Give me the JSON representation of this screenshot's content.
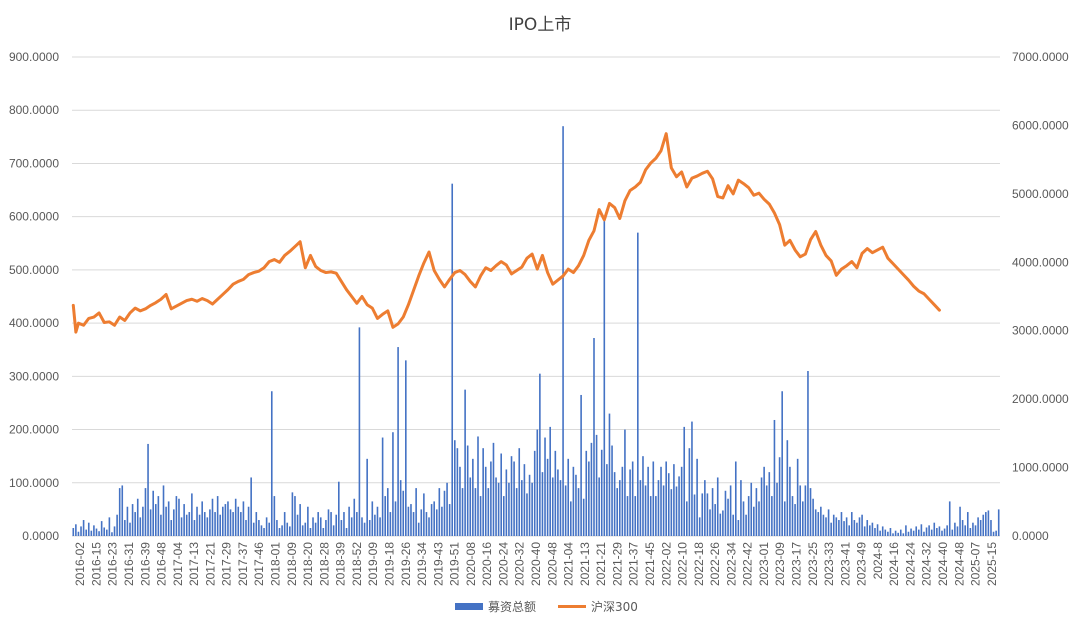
{
  "chart_data": {
    "type": "bar+line",
    "title": "IPO上市",
    "grid": true,
    "legend_position": "bottom",
    "colors": {
      "bars": "#4472C4",
      "line": "#ED7D31",
      "grid": "#D9D9D9",
      "text": "#595959"
    },
    "x_tick_labels": [
      "2016-02",
      "2016-15",
      "2016-23",
      "2016-31",
      "2016-39",
      "2016-48",
      "2017-04",
      "2017-13",
      "2017-21",
      "2017-29",
      "2017-37",
      "2017-46",
      "2018-01",
      "2018-09",
      "2018-20",
      "2018-28",
      "2018-39",
      "2018-52",
      "2019-09",
      "2019-18",
      "2019-26",
      "2019-34",
      "2019-43",
      "2019-51",
      "2020-08",
      "2020-16",
      "2020-24",
      "2020-32",
      "2020-40",
      "2020-48",
      "2021-04",
      "2021-13",
      "2021-21",
      "2021-29",
      "2021-37",
      "2021-45",
      "2022-02",
      "2022-10",
      "2022-18",
      "2022-26",
      "2022-34",
      "2022-42",
      "2023-01",
      "2023-09",
      "2023-17",
      "2023-25",
      "2023-33",
      "2023-41",
      "2023-49",
      "2024-8",
      "2024-16",
      "2024-24",
      "2024-32",
      "2024-40",
      "2024-48",
      "2025-07",
      "2025-15"
    ],
    "y_left": {
      "ylim": [
        0,
        900
      ],
      "ticks": [
        "0.0000",
        "100.0000",
        "200.0000",
        "300.0000",
        "400.0000",
        "500.0000",
        "600.0000",
        "700.0000",
        "800.0000",
        "900.0000"
      ]
    },
    "y_right": {
      "ylim": [
        0,
        7000
      ],
      "ticks": [
        "0.0000",
        "1000.0000",
        "2000.0000",
        "3000.0000",
        "4000.0000",
        "5000.0000",
        "6000.0000",
        "7000.0000"
      ]
    },
    "series": [
      {
        "name": "募资总额",
        "type": "bar",
        "axis": "left",
        "values": [
          15,
          22,
          8,
          18,
          30,
          12,
          25,
          10,
          20,
          14,
          9,
          28,
          16,
          12,
          35,
          7,
          18,
          40,
          90,
          95,
          30,
          55,
          25,
          60,
          45,
          70,
          35,
          55,
          90,
          173,
          50,
          85,
          60,
          75,
          40,
          95,
          55,
          65,
          30,
          50,
          75,
          70,
          35,
          60,
          40,
          45,
          80,
          30,
          55,
          40,
          65,
          45,
          35,
          50,
          70,
          45,
          75,
          40,
          55,
          60,
          65,
          50,
          45,
          70,
          55,
          45,
          65,
          30,
          55,
          110,
          25,
          45,
          30,
          20,
          15,
          35,
          25,
          272,
          75,
          30,
          15,
          20,
          45,
          25,
          18,
          82,
          75,
          40,
          60,
          20,
          25,
          55,
          15,
          35,
          25,
          45,
          35,
          15,
          30,
          50,
          45,
          20,
          40,
          102,
          30,
          45,
          15,
          55,
          35,
          70,
          45,
          392,
          35,
          25,
          145,
          30,
          65,
          40,
          55,
          35,
          185,
          75,
          90,
          45,
          195,
          65,
          355,
          105,
          85,
          330,
          55,
          60,
          45,
          90,
          25,
          50,
          80,
          45,
          35,
          60,
          65,
          50,
          90,
          55,
          85,
          100,
          60,
          662,
          180,
          165,
          130,
          90,
          275,
          170,
          110,
          145,
          90,
          187,
          75,
          165,
          130,
          90,
          140,
          175,
          110,
          100,
          155,
          75,
          125,
          100,
          150,
          140,
          90,
          165,
          105,
          135,
          80,
          115,
          100,
          160,
          200,
          305,
          120,
          185,
          145,
          205,
          110,
          160,
          125,
          105,
          770,
          95,
          145,
          65,
          130,
          115,
          90,
          265,
          70,
          160,
          140,
          175,
          372,
          190,
          110,
          162,
          600,
          135,
          230,
          170,
          120,
          90,
          105,
          130,
          200,
          75,
          125,
          140,
          75,
          570,
          105,
          150,
          95,
          130,
          75,
          140,
          75,
          105,
          130,
          95,
          140,
          118,
          88,
          135,
          93,
          112,
          130,
          205,
          65,
          165,
          215,
          78,
          145,
          35,
          80,
          105,
          80,
          50,
          90,
          60,
          110,
          42,
          48,
          85,
          70,
          95,
          40,
          140,
          30,
          105,
          65,
          40,
          75,
          100,
          55,
          90,
          65,
          110,
          130,
          95,
          120,
          75,
          218,
          100,
          148,
          272,
          65,
          180,
          130,
          75,
          60,
          145,
          95,
          65,
          95,
          310,
          90,
          70,
          50,
          45,
          55,
          40,
          35,
          50,
          25,
          40,
          35,
          30,
          45,
          28,
          35,
          20,
          45,
          30,
          25,
          35,
          40,
          18,
          30,
          20,
          25,
          15,
          22,
          10,
          18,
          12,
          8,
          15,
          5,
          10,
          6,
          12,
          5,
          20,
          8,
          14,
          10,
          18,
          12,
          22,
          8,
          16,
          20,
          12,
          25,
          15,
          18,
          10,
          14,
          20,
          65,
          12,
          25,
          18,
          55,
          30,
          20,
          45,
          15,
          25,
          20,
          35,
          30,
          40,
          45,
          48,
          30,
          8,
          10,
          50
        ]
      },
      {
        "name": "沪深300",
        "type": "line",
        "axis": "right",
        "points": [
          [
            0,
            3370
          ],
          [
            1,
            2980
          ],
          [
            2,
            3110
          ],
          [
            4,
            3080
          ],
          [
            6,
            3180
          ],
          [
            8,
            3200
          ],
          [
            10,
            3260
          ],
          [
            12,
            3120
          ],
          [
            14,
            3130
          ],
          [
            16,
            3080
          ],
          [
            18,
            3200
          ],
          [
            20,
            3150
          ],
          [
            22,
            3260
          ],
          [
            24,
            3330
          ],
          [
            26,
            3290
          ],
          [
            28,
            3320
          ],
          [
            30,
            3370
          ],
          [
            32,
            3410
          ],
          [
            34,
            3460
          ],
          [
            36,
            3530
          ],
          [
            38,
            3320
          ],
          [
            40,
            3360
          ],
          [
            42,
            3400
          ],
          [
            44,
            3440
          ],
          [
            46,
            3460
          ],
          [
            48,
            3430
          ],
          [
            50,
            3470
          ],
          [
            52,
            3440
          ],
          [
            54,
            3390
          ],
          [
            56,
            3460
          ],
          [
            58,
            3530
          ],
          [
            60,
            3600
          ],
          [
            62,
            3680
          ],
          [
            64,
            3720
          ],
          [
            66,
            3750
          ],
          [
            68,
            3820
          ],
          [
            70,
            3850
          ],
          [
            72,
            3870
          ],
          [
            74,
            3920
          ],
          [
            76,
            4010
          ],
          [
            78,
            4040
          ],
          [
            80,
            4000
          ],
          [
            82,
            4100
          ],
          [
            84,
            4160
          ],
          [
            86,
            4230
          ],
          [
            88,
            4300
          ],
          [
            90,
            3920
          ],
          [
            92,
            4100
          ],
          [
            94,
            3940
          ],
          [
            96,
            3880
          ],
          [
            98,
            3850
          ],
          [
            100,
            3860
          ],
          [
            102,
            3840
          ],
          [
            104,
            3720
          ],
          [
            106,
            3600
          ],
          [
            108,
            3500
          ],
          [
            110,
            3400
          ],
          [
            112,
            3500
          ],
          [
            114,
            3380
          ],
          [
            116,
            3330
          ],
          [
            118,
            3180
          ],
          [
            120,
            3240
          ],
          [
            122,
            3290
          ],
          [
            124,
            3050
          ],
          [
            126,
            3100
          ],
          [
            128,
            3200
          ],
          [
            130,
            3380
          ],
          [
            132,
            3590
          ],
          [
            134,
            3800
          ],
          [
            136,
            3990
          ],
          [
            138,
            4150
          ],
          [
            140,
            3880
          ],
          [
            142,
            3750
          ],
          [
            144,
            3640
          ],
          [
            146,
            3750
          ],
          [
            148,
            3850
          ],
          [
            150,
            3880
          ],
          [
            152,
            3820
          ],
          [
            154,
            3720
          ],
          [
            156,
            3640
          ],
          [
            158,
            3800
          ],
          [
            160,
            3920
          ],
          [
            162,
            3880
          ],
          [
            164,
            3950
          ],
          [
            166,
            4010
          ],
          [
            168,
            3960
          ],
          [
            170,
            3830
          ],
          [
            172,
            3880
          ],
          [
            174,
            3930
          ],
          [
            176,
            4060
          ],
          [
            178,
            4120
          ],
          [
            180,
            3900
          ],
          [
            182,
            4100
          ],
          [
            184,
            3850
          ],
          [
            186,
            3680
          ],
          [
            188,
            3740
          ],
          [
            190,
            3800
          ],
          [
            192,
            3900
          ],
          [
            194,
            3850
          ],
          [
            196,
            3950
          ],
          [
            198,
            4100
          ],
          [
            200,
            4320
          ],
          [
            202,
            4460
          ],
          [
            204,
            4770
          ],
          [
            206,
            4620
          ],
          [
            208,
            4860
          ],
          [
            210,
            4800
          ],
          [
            212,
            4640
          ],
          [
            214,
            4900
          ],
          [
            216,
            5050
          ],
          [
            218,
            5100
          ],
          [
            220,
            5170
          ],
          [
            222,
            5350
          ],
          [
            224,
            5450
          ],
          [
            226,
            5520
          ],
          [
            228,
            5630
          ],
          [
            230,
            5880
          ],
          [
            232,
            5380
          ],
          [
            234,
            5250
          ],
          [
            236,
            5320
          ],
          [
            238,
            5100
          ],
          [
            240,
            5230
          ],
          [
            242,
            5260
          ],
          [
            244,
            5300
          ],
          [
            246,
            5330
          ],
          [
            248,
            5220
          ],
          [
            250,
            4960
          ],
          [
            252,
            4940
          ],
          [
            254,
            5120
          ],
          [
            256,
            5000
          ],
          [
            258,
            5200
          ],
          [
            260,
            5150
          ],
          [
            262,
            5090
          ],
          [
            264,
            4980
          ],
          [
            266,
            5010
          ],
          [
            268,
            4920
          ],
          [
            270,
            4850
          ],
          [
            272,
            4720
          ],
          [
            274,
            4550
          ],
          [
            276,
            4250
          ],
          [
            278,
            4320
          ],
          [
            280,
            4180
          ],
          [
            282,
            4080
          ],
          [
            284,
            4120
          ],
          [
            286,
            4330
          ],
          [
            288,
            4450
          ],
          [
            290,
            4250
          ],
          [
            292,
            4100
          ],
          [
            294,
            4020
          ],
          [
            296,
            3810
          ],
          [
            298,
            3900
          ],
          [
            300,
            3950
          ],
          [
            302,
            4010
          ],
          [
            304,
            3920
          ],
          [
            306,
            4130
          ],
          [
            308,
            4200
          ],
          [
            310,
            4140
          ],
          [
            312,
            4180
          ],
          [
            314,
            4220
          ],
          [
            316,
            4060
          ],
          [
            318,
            3980
          ],
          [
            320,
            3900
          ],
          [
            322,
            3820
          ],
          [
            324,
            3740
          ],
          [
            326,
            3650
          ],
          [
            328,
            3580
          ],
          [
            330,
            3540
          ],
          [
            332,
            3460
          ],
          [
            334,
            3380
          ],
          [
            336,
            3300
          ]
        ]
      }
    ],
    "legend": [
      "募资总额",
      "沪深300"
    ]
  }
}
